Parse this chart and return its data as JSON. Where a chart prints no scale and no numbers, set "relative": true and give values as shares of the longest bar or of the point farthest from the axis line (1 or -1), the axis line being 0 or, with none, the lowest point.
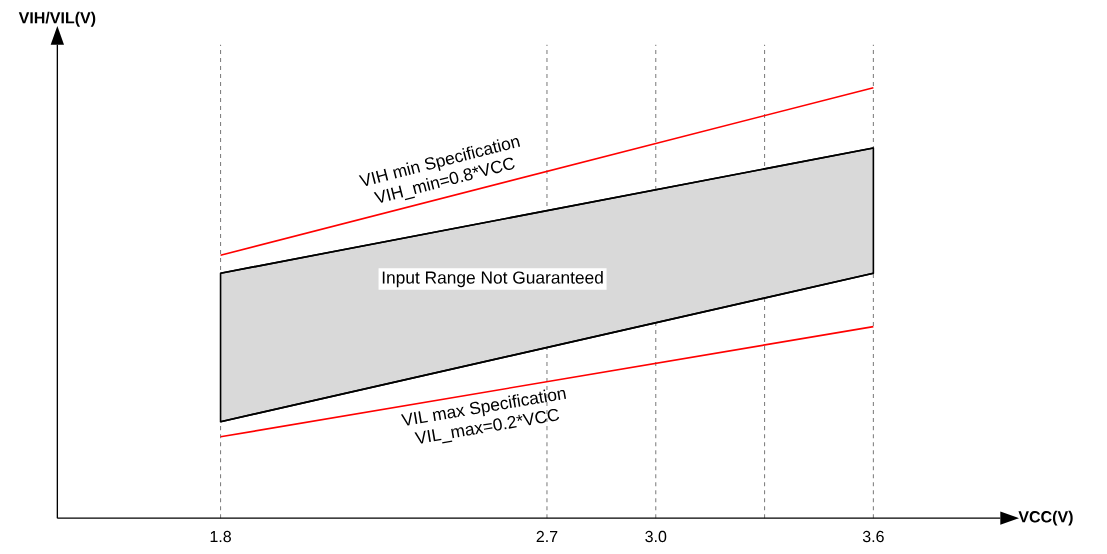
{
  "chart_data": {
    "type": "line",
    "relative": true,
    "xlabel": "VCC(V)",
    "ylabel": "VIH/VIL(V)",
    "x": [
      1.8,
      3.6
    ],
    "xlim": [
      1.35,
      3.95
    ],
    "xticks": [
      1.8,
      2.7,
      {
        "value": 3.0,
        "label": "3.0"
      },
      {
        "value": 3.3,
        "label": null
      },
      3.6
    ],
    "grid": "x",
    "tick_labels": "x",
    "series": [
      {
        "color": "#ff0000",
        "values": [
          0.611,
          1.0
        ]
      },
      {
        "color": "#000000",
        "values": [
          0.569,
          0.86
        ],
        "lower": [
          0.224,
          0.569
        ],
        "upper": [
          0.569,
          0.86
        ]
      },
      {
        "color": "#000000",
        "values": [
          0.224,
          0.569
        ]
      },
      {
        "color": "#ff0000",
        "values": [
          0.189,
          0.445
        ]
      }
    ],
    "annotations": [
      "VIH min Specification",
      "VIH_min=0.8*VCC",
      "Input Range Not Guaranteed",
      "VIL max Specification",
      "VIL_max=0.2*VCC"
    ]
  }
}
